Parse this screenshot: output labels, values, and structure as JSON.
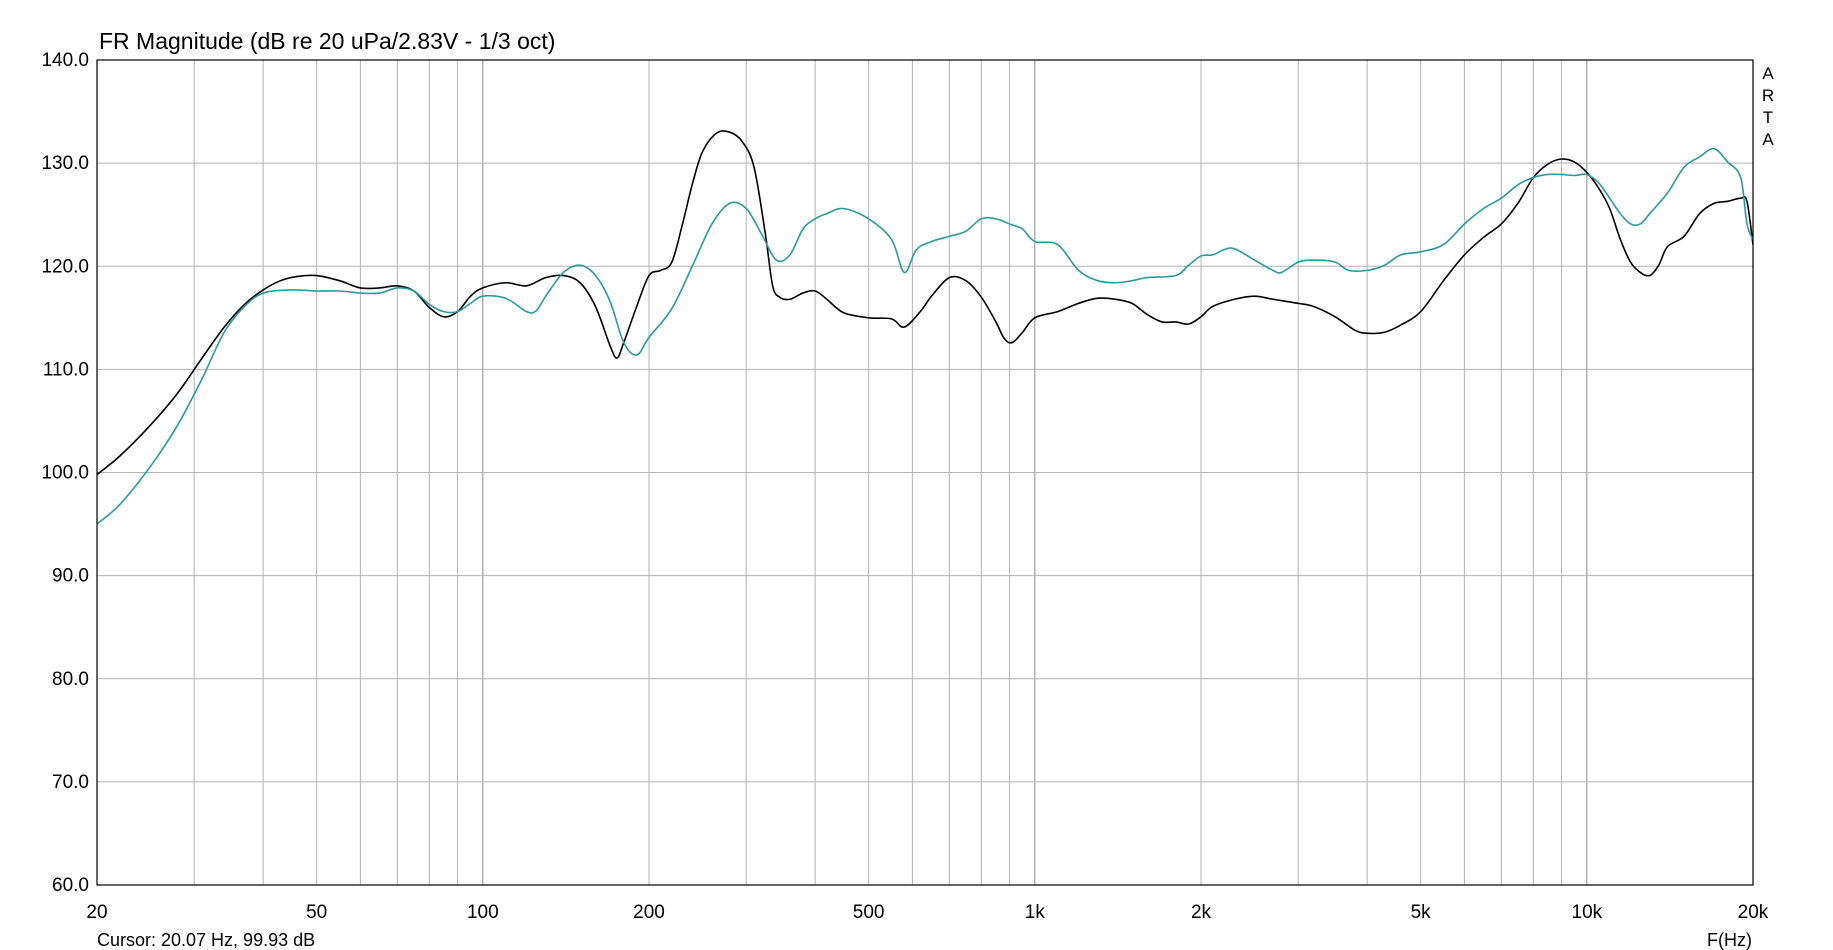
{
  "chart_data": {
    "type": "line",
    "title": "FR Magnitude (dB re 20 uPa/2.83V - 1/3 oct)",
    "xlabel": "F(Hz)",
    "ylabel": "",
    "xscale": "log",
    "xlim": [
      20,
      20000
    ],
    "ylim": [
      60,
      140
    ],
    "grid": true,
    "x_ticks": [
      {
        "value": 20,
        "label": "20"
      },
      {
        "value": 50,
        "label": "50"
      },
      {
        "value": 100,
        "label": "100"
      },
      {
        "value": 200,
        "label": "200"
      },
      {
        "value": 500,
        "label": "500"
      },
      {
        "value": 1000,
        "label": "1k"
      },
      {
        "value": 2000,
        "label": "2k"
      },
      {
        "value": 5000,
        "label": "5k"
      },
      {
        "value": 10000,
        "label": "10k"
      },
      {
        "value": 20000,
        "label": "20k"
      }
    ],
    "y_ticks": [
      {
        "value": 60,
        "label": "60.0"
      },
      {
        "value": 70,
        "label": "70.0"
      },
      {
        "value": 80,
        "label": "80.0"
      },
      {
        "value": 90,
        "label": "90.0"
      },
      {
        "value": 100,
        "label": "100.0"
      },
      {
        "value": 110,
        "label": "110.0"
      },
      {
        "value": 120,
        "label": "120.0"
      },
      {
        "value": 130,
        "label": "130.0"
      },
      {
        "value": 140,
        "label": "140.0"
      }
    ],
    "series": [
      {
        "color": "#000000",
        "points": [
          [
            20,
            99.8
          ],
          [
            22,
            101.6
          ],
          [
            25,
            104.6
          ],
          [
            28,
            107.7
          ],
          [
            31,
            111.1
          ],
          [
            34,
            114.1
          ],
          [
            37,
            116.3
          ],
          [
            40,
            117.7
          ],
          [
            43,
            118.6
          ],
          [
            46,
            119.0
          ],
          [
            50,
            119.1
          ],
          [
            55,
            118.6
          ],
          [
            60,
            117.9
          ],
          [
            65,
            117.9
          ],
          [
            70,
            118.1
          ],
          [
            75,
            117.6
          ],
          [
            80,
            116.0
          ],
          [
            85,
            115.1
          ],
          [
            90,
            115.6
          ],
          [
            95,
            117.1
          ],
          [
            100,
            117.9
          ],
          [
            110,
            118.4
          ],
          [
            120,
            118.1
          ],
          [
            130,
            118.9
          ],
          [
            140,
            119.1
          ],
          [
            150,
            118.4
          ],
          [
            160,
            116.1
          ],
          [
            170,
            112.3
          ],
          [
            175,
            111.1
          ],
          [
            180,
            112.6
          ],
          [
            190,
            116.1
          ],
          [
            200,
            119.1
          ],
          [
            210,
            119.6
          ],
          [
            220,
            120.4
          ],
          [
            230,
            124.1
          ],
          [
            240,
            128.1
          ],
          [
            250,
            131.1
          ],
          [
            265,
            132.9
          ],
          [
            280,
            133.0
          ],
          [
            295,
            132.1
          ],
          [
            310,
            129.6
          ],
          [
            325,
            123.1
          ],
          [
            335,
            118.1
          ],
          [
            345,
            117.0
          ],
          [
            360,
            116.8
          ],
          [
            380,
            117.4
          ],
          [
            400,
            117.6
          ],
          [
            420,
            116.8
          ],
          [
            450,
            115.5
          ],
          [
            500,
            115.0
          ],
          [
            550,
            114.9
          ],
          [
            580,
            114.1
          ],
          [
            620,
            115.6
          ],
          [
            650,
            117.1
          ],
          [
            700,
            118.9
          ],
          [
            750,
            118.6
          ],
          [
            800,
            117.0
          ],
          [
            850,
            114.6
          ],
          [
            880,
            113.0
          ],
          [
            910,
            112.6
          ],
          [
            950,
            113.6
          ],
          [
            1000,
            115.0
          ],
          [
            1100,
            115.6
          ],
          [
            1200,
            116.4
          ],
          [
            1300,
            116.9
          ],
          [
            1400,
            116.8
          ],
          [
            1500,
            116.4
          ],
          [
            1600,
            115.3
          ],
          [
            1700,
            114.6
          ],
          [
            1800,
            114.6
          ],
          [
            1900,
            114.4
          ],
          [
            2000,
            115.1
          ],
          [
            2100,
            116.1
          ],
          [
            2300,
            116.8
          ],
          [
            2500,
            117.1
          ],
          [
            2700,
            116.8
          ],
          [
            3000,
            116.4
          ],
          [
            3200,
            116.1
          ],
          [
            3500,
            115.1
          ],
          [
            3800,
            113.8
          ],
          [
            4000,
            113.5
          ],
          [
            4300,
            113.6
          ],
          [
            4600,
            114.3
          ],
          [
            5000,
            115.6
          ],
          [
            5500,
            118.6
          ],
          [
            6000,
            121.1
          ],
          [
            6500,
            122.8
          ],
          [
            7000,
            124.1
          ],
          [
            7500,
            126.1
          ],
          [
            8000,
            128.6
          ],
          [
            8500,
            129.9
          ],
          [
            9000,
            130.4
          ],
          [
            9500,
            130.1
          ],
          [
            10000,
            129.1
          ],
          [
            10500,
            127.6
          ],
          [
            11000,
            125.6
          ],
          [
            11500,
            122.6
          ],
          [
            12000,
            120.4
          ],
          [
            12500,
            119.4
          ],
          [
            13000,
            119.1
          ],
          [
            13500,
            120.1
          ],
          [
            14000,
            121.9
          ],
          [
            15000,
            122.9
          ],
          [
            16000,
            125.1
          ],
          [
            17000,
            126.1
          ],
          [
            18000,
            126.3
          ],
          [
            19000,
            126.6
          ],
          [
            19500,
            126.3
          ],
          [
            20000,
            122.1
          ]
        ]
      },
      {
        "color": "#2a9a9e",
        "points": [
          [
            20,
            95.0
          ],
          [
            22,
            96.9
          ],
          [
            25,
            100.6
          ],
          [
            28,
            104.6
          ],
          [
            31,
            109.1
          ],
          [
            34,
            113.6
          ],
          [
            37,
            116.1
          ],
          [
            40,
            117.4
          ],
          [
            45,
            117.7
          ],
          [
            50,
            117.6
          ],
          [
            55,
            117.6
          ],
          [
            60,
            117.4
          ],
          [
            65,
            117.4
          ],
          [
            70,
            117.9
          ],
          [
            75,
            117.6
          ],
          [
            80,
            116.3
          ],
          [
            85,
            115.6
          ],
          [
            90,
            115.6
          ],
          [
            95,
            116.4
          ],
          [
            100,
            117.1
          ],
          [
            110,
            116.9
          ],
          [
            120,
            115.6
          ],
          [
            125,
            115.7
          ],
          [
            130,
            117.1
          ],
          [
            140,
            119.4
          ],
          [
            150,
            120.1
          ],
          [
            160,
            119.1
          ],
          [
            170,
            116.6
          ],
          [
            180,
            112.6
          ],
          [
            190,
            111.4
          ],
          [
            200,
            113.1
          ],
          [
            220,
            115.9
          ],
          [
            240,
            120.1
          ],
          [
            260,
            124.1
          ],
          [
            280,
            126.1
          ],
          [
            300,
            125.6
          ],
          [
            320,
            123.1
          ],
          [
            340,
            120.6
          ],
          [
            360,
            121.1
          ],
          [
            380,
            123.6
          ],
          [
            400,
            124.6
          ],
          [
            420,
            125.1
          ],
          [
            450,
            125.6
          ],
          [
            500,
            124.6
          ],
          [
            550,
            122.6
          ],
          [
            580,
            119.4
          ],
          [
            610,
            121.6
          ],
          [
            650,
            122.4
          ],
          [
            700,
            122.9
          ],
          [
            750,
            123.4
          ],
          [
            800,
            124.6
          ],
          [
            850,
            124.6
          ],
          [
            900,
            124.1
          ],
          [
            950,
            123.6
          ],
          [
            1000,
            122.4
          ],
          [
            1100,
            122.1
          ],
          [
            1200,
            119.6
          ],
          [
            1300,
            118.6
          ],
          [
            1400,
            118.4
          ],
          [
            1500,
            118.6
          ],
          [
            1600,
            118.9
          ],
          [
            1800,
            119.1
          ],
          [
            1900,
            120.1
          ],
          [
            2000,
            121.0
          ],
          [
            2100,
            121.1
          ],
          [
            2200,
            121.6
          ],
          [
            2300,
            121.7
          ],
          [
            2500,
            120.6
          ],
          [
            2700,
            119.6
          ],
          [
            2800,
            119.4
          ],
          [
            3000,
            120.4
          ],
          [
            3200,
            120.6
          ],
          [
            3500,
            120.4
          ],
          [
            3700,
            119.6
          ],
          [
            4000,
            119.6
          ],
          [
            4300,
            120.1
          ],
          [
            4600,
            121.1
          ],
          [
            5000,
            121.4
          ],
          [
            5500,
            122.1
          ],
          [
            6000,
            124.1
          ],
          [
            6500,
            125.6
          ],
          [
            7000,
            126.6
          ],
          [
            7500,
            127.9
          ],
          [
            8000,
            128.6
          ],
          [
            8500,
            128.9
          ],
          [
            9000,
            128.9
          ],
          [
            9500,
            128.8
          ],
          [
            10000,
            128.9
          ],
          [
            10500,
            128.1
          ],
          [
            11000,
            126.6
          ],
          [
            11500,
            125.1
          ],
          [
            12000,
            124.1
          ],
          [
            12500,
            124.1
          ],
          [
            13000,
            125.1
          ],
          [
            14000,
            127.1
          ],
          [
            15000,
            129.6
          ],
          [
            16000,
            130.6
          ],
          [
            17000,
            131.4
          ],
          [
            18000,
            130.1
          ],
          [
            19000,
            128.6
          ],
          [
            19500,
            124.1
          ],
          [
            20000,
            122.6
          ]
        ]
      }
    ],
    "cursor_readout": "Cursor: 20.07 Hz, 99.93 dB",
    "watermark": "ARTA"
  }
}
